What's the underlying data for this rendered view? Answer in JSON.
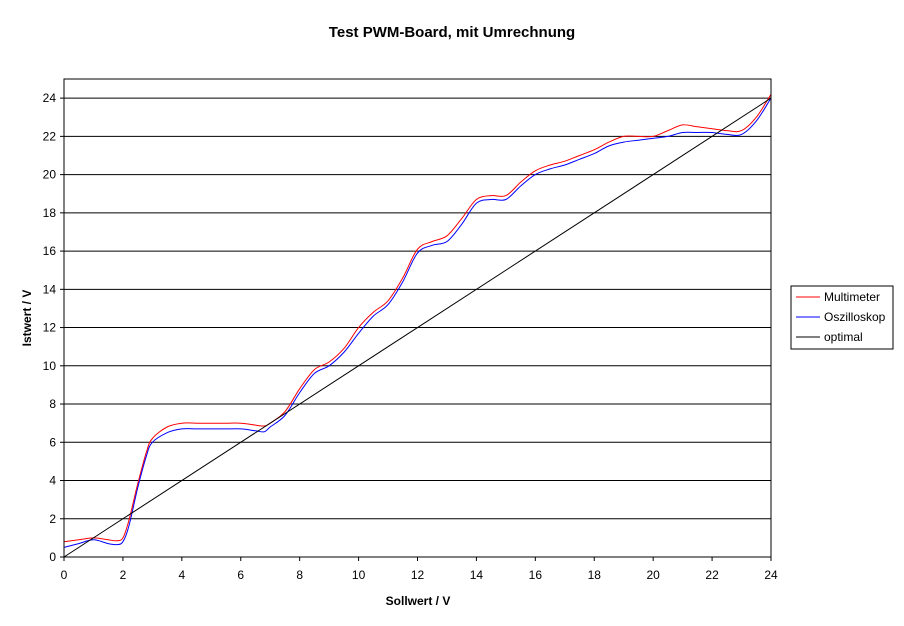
{
  "chart_data": {
    "type": "line",
    "title": "Test PWM-Board, mit Umrechnung",
    "xlabel": "Sollwert / V",
    "ylabel": "Istwert / V",
    "xlim": [
      0,
      24
    ],
    "ylim": [
      0,
      25
    ],
    "x_ticks": [
      "0",
      "2",
      "4",
      "6",
      "8",
      "10",
      "12",
      "14",
      "16",
      "18",
      "20",
      "22",
      "24"
    ],
    "y_ticks": [
      "0",
      "2",
      "4",
      "6",
      "8",
      "10",
      "12",
      "14",
      "16",
      "18",
      "20",
      "22",
      "24"
    ],
    "grid": "horizontal",
    "legend_position": "right",
    "series": [
      {
        "name": "Multimeter",
        "color": "#ff0000",
        "x": [
          0,
          0.5,
          1,
          1.5,
          1.8,
          2,
          2.2,
          2.5,
          2.8,
          3,
          3.5,
          4,
          4.5,
          5,
          5.5,
          6,
          6.5,
          6.8,
          7,
          7.5,
          8,
          8.5,
          9,
          9.5,
          10,
          10.5,
          11,
          11.5,
          12,
          12.5,
          13,
          13.5,
          14,
          14.5,
          15,
          15.5,
          16,
          16.5,
          17,
          17.5,
          18,
          18.5,
          19,
          19.5,
          20,
          20.5,
          21,
          21.5,
          22,
          22.5,
          23,
          23.5,
          24
        ],
        "y": [
          0.8,
          0.9,
          1.0,
          0.9,
          0.85,
          1.0,
          1.9,
          3.8,
          5.5,
          6.2,
          6.8,
          7.0,
          7.0,
          7.0,
          7.0,
          7.0,
          6.9,
          6.85,
          7.0,
          7.6,
          8.8,
          9.8,
          10.2,
          10.9,
          12.0,
          12.8,
          13.4,
          14.6,
          16.1,
          16.5,
          16.8,
          17.7,
          18.7,
          18.9,
          18.9,
          19.6,
          20.2,
          20.5,
          20.7,
          21.0,
          21.3,
          21.7,
          22.0,
          22.0,
          22.0,
          22.3,
          22.6,
          22.5,
          22.4,
          22.3,
          22.3,
          23.0,
          24.2
        ]
      },
      {
        "name": "Oszilloskop",
        "color": "#0000ff",
        "x": [
          0,
          0.5,
          1,
          1.5,
          1.8,
          2,
          2.2,
          2.5,
          2.8,
          3,
          3.5,
          4,
          4.5,
          5,
          5.5,
          6,
          6.5,
          6.8,
          7,
          7.5,
          8,
          8.5,
          9,
          9.5,
          10,
          10.5,
          11,
          11.5,
          12,
          12.5,
          13,
          13.5,
          14,
          14.5,
          15,
          15.5,
          16,
          16.5,
          17,
          17.5,
          18,
          18.5,
          19,
          19.5,
          20,
          20.5,
          21,
          21.5,
          22,
          22.5,
          23,
          23.5,
          24
        ],
        "y": [
          0.5,
          0.7,
          0.9,
          0.7,
          0.65,
          0.8,
          1.6,
          3.6,
          5.3,
          6.0,
          6.5,
          6.7,
          6.7,
          6.7,
          6.7,
          6.7,
          6.6,
          6.55,
          6.8,
          7.4,
          8.6,
          9.6,
          10.0,
          10.7,
          11.7,
          12.6,
          13.2,
          14.4,
          15.9,
          16.3,
          16.5,
          17.4,
          18.5,
          18.7,
          18.7,
          19.4,
          20.0,
          20.3,
          20.5,
          20.8,
          21.1,
          21.5,
          21.7,
          21.8,
          21.9,
          22.0,
          22.2,
          22.2,
          22.2,
          22.1,
          22.1,
          22.8,
          24.0
        ]
      },
      {
        "name": "optimal",
        "color": "#000000",
        "x": [
          0,
          24
        ],
        "y": [
          0,
          24
        ]
      }
    ]
  }
}
